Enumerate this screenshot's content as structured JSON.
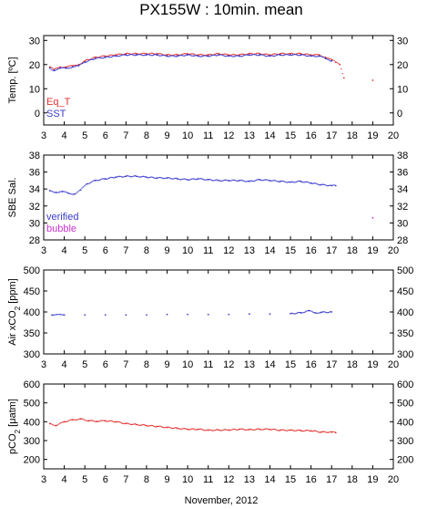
{
  "title": "PX155W : 10min. mean",
  "xlabel": "November, 2012",
  "colors": {
    "red": "#e03030",
    "blue": "#3a3acc",
    "purple": "#8a2a9a",
    "magenta": "#cc33cc"
  },
  "chart_data": [
    {
      "type": "scatter",
      "ylabel": "Temp. [ºC]",
      "xlim": [
        3,
        20
      ],
      "ylim": [
        -5,
        32
      ],
      "xticks": [
        "3",
        "4",
        "5",
        "6",
        "7",
        "8",
        "9",
        "10",
        "11",
        "12",
        "13",
        "14",
        "15",
        "16",
        "17",
        "18",
        "19",
        "20"
      ],
      "yticks": [
        "0",
        "10",
        "20",
        "30"
      ],
      "legend": [
        "Eq_T",
        "SST"
      ],
      "legend_position": "bottom-left",
      "series": [
        {
          "name": "Eq_T",
          "color": "#e03030",
          "x": [
            3.3,
            3.5,
            3.8,
            4.1,
            4.4,
            4.7,
            5.0,
            5.5,
            6.0,
            6.5,
            7.0,
            7.5,
            8.0,
            8.5,
            9.0,
            9.5,
            10.0,
            10.5,
            11.0,
            11.5,
            12.0,
            12.5,
            13.0,
            13.5,
            14.0,
            14.5,
            15.0,
            15.5,
            16.0,
            16.4,
            16.7,
            17.0,
            17.2,
            17.4,
            17.6,
            19.0
          ],
          "y": [
            19,
            18,
            19,
            19,
            19.5,
            20,
            21.5,
            23,
            23.5,
            24,
            24.5,
            24.5,
            24.5,
            24.5,
            24,
            24,
            24.5,
            24,
            24,
            24.5,
            24,
            24,
            24.5,
            24.5,
            24,
            24.5,
            24.5,
            24.5,
            24,
            24,
            23,
            22,
            21,
            20,
            14.5,
            13.5
          ]
        },
        {
          "name": "SST",
          "color": "#3a3acc",
          "x": [
            3.3,
            3.5,
            3.8,
            4.1,
            4.4,
            4.7,
            5.0,
            5.5,
            6.0,
            6.5,
            7.0,
            7.5,
            8.0,
            8.5,
            9.0,
            9.5,
            10.0,
            10.5,
            11.0,
            11.5,
            12.0,
            12.5,
            13.0,
            13.5,
            14.0,
            14.5,
            15.0,
            15.5,
            16.0,
            16.4,
            16.7,
            17.0
          ],
          "y": [
            18.5,
            17.5,
            18.5,
            18.5,
            19,
            19.5,
            21,
            22.5,
            23,
            23.5,
            24,
            24,
            24,
            24,
            23.5,
            23.5,
            24,
            23.5,
            23.5,
            24,
            23.5,
            23.5,
            24,
            24,
            23.5,
            24,
            24,
            24,
            23.5,
            23.5,
            22.5,
            21.5
          ]
        }
      ]
    },
    {
      "type": "scatter",
      "ylabel": "SBE Sal.",
      "xlim": [
        3,
        20
      ],
      "ylim": [
        28,
        38
      ],
      "xticks": [
        "3",
        "4",
        "5",
        "6",
        "7",
        "8",
        "9",
        "10",
        "11",
        "12",
        "13",
        "14",
        "15",
        "16",
        "17",
        "18",
        "19",
        "20"
      ],
      "yticks": [
        "28",
        "30",
        "32",
        "34",
        "36",
        "38"
      ],
      "legend": [
        "verified",
        "bubble"
      ],
      "legend_position": "bottom-left",
      "series": [
        {
          "name": "verified",
          "color": "#3a3acc",
          "x": [
            3.3,
            3.6,
            3.9,
            4.2,
            4.5,
            4.8,
            5.1,
            5.5,
            6.0,
            6.5,
            7.0,
            7.5,
            8.0,
            8.5,
            9.0,
            9.5,
            10.0,
            10.5,
            11.0,
            11.5,
            12.0,
            12.5,
            13.0,
            13.5,
            14.0,
            14.5,
            15.0,
            15.5,
            16.0,
            16.5,
            17.0,
            17.2
          ],
          "y": [
            33.8,
            33.6,
            33.7,
            33.5,
            33.4,
            33.9,
            34.6,
            35.0,
            35.2,
            35.4,
            35.5,
            35.5,
            35.4,
            35.3,
            35.3,
            35.2,
            35.1,
            35.2,
            35.1,
            35.0,
            35.0,
            35.0,
            34.9,
            35.1,
            35.0,
            34.9,
            34.8,
            34.9,
            34.7,
            34.5,
            34.4,
            34.4
          ]
        },
        {
          "name": "bubble",
          "color": "#cc33cc",
          "x": [
            19.0
          ],
          "y": [
            30.6
          ]
        }
      ]
    },
    {
      "type": "scatter",
      "ylabel": "Air xCO₂ [ppm]",
      "xlim": [
        3,
        20
      ],
      "ylim": [
        300,
        500
      ],
      "xticks": [
        "3",
        "4",
        "5",
        "6",
        "7",
        "8",
        "9",
        "10",
        "11",
        "12",
        "13",
        "14",
        "15",
        "16",
        "17",
        "18",
        "19",
        "20"
      ],
      "yticks": [
        "300",
        "350",
        "400",
        "450",
        "500"
      ],
      "series": [
        {
          "name": "",
          "color": "#3a3acc",
          "x": [
            3.4,
            4.0,
            5.0,
            6.0,
            7.0,
            8.0,
            9.0,
            10.0,
            11.0,
            12.0,
            13.0,
            14.0,
            15.0,
            15.5,
            15.9,
            16.2,
            16.5,
            17.0
          ],
          "y": [
            393,
            393,
            393,
            393,
            393,
            393,
            394,
            394,
            394,
            394,
            395,
            395,
            396,
            398,
            403,
            398,
            399,
            400
          ]
        }
      ]
    },
    {
      "type": "scatter",
      "ylabel": "pCO₂ [μatm]",
      "xlim": [
        3,
        20
      ],
      "ylim": [
        150,
        600
      ],
      "xticks": [
        "3",
        "4",
        "5",
        "6",
        "7",
        "8",
        "9",
        "10",
        "11",
        "12",
        "13",
        "14",
        "15",
        "16",
        "17",
        "18",
        "19",
        "20"
      ],
      "yticks": [
        "200",
        "300",
        "400",
        "500",
        "600"
      ],
      "series": [
        {
          "name": "",
          "color": "#e03030",
          "x": [
            3.3,
            3.6,
            4.0,
            4.4,
            4.8,
            5.2,
            5.6,
            6.0,
            6.5,
            7.0,
            7.5,
            8.0,
            8.5,
            9.0,
            9.5,
            10.0,
            10.5,
            11.0,
            11.5,
            12.0,
            12.5,
            13.0,
            13.5,
            14.0,
            14.5,
            15.0,
            15.5,
            16.0,
            16.5,
            17.0,
            17.2
          ],
          "y": [
            390,
            380,
            400,
            410,
            415,
            405,
            402,
            405,
            400,
            390,
            385,
            380,
            375,
            370,
            365,
            360,
            360,
            355,
            356,
            356,
            360,
            358,
            360,
            360,
            355,
            355,
            353,
            352,
            345,
            345,
            342
          ]
        }
      ]
    }
  ]
}
